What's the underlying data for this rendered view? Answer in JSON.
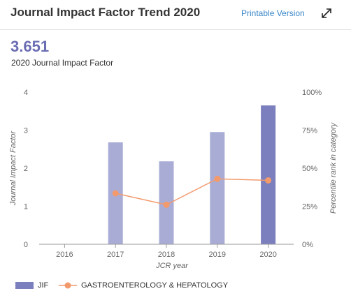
{
  "header": {
    "title": "Journal Impact Factor Trend 2020",
    "print_label": "Printable Version",
    "expand_icon": "expand-arrows-icon"
  },
  "metric": {
    "value": "3.651",
    "label": "2020 Journal Impact Factor"
  },
  "colors": {
    "bar": "#a9add6",
    "bar_highlight": "#7b7fbd",
    "line": "#f29a6c",
    "axis": "#999999",
    "text": "#666666"
  },
  "chart_data": {
    "type": "bar",
    "categories": [
      "2016",
      "2017",
      "2018",
      "2019",
      "2020"
    ],
    "xlabel": "JCR year",
    "ylabel": "Journal Impact Factor",
    "y2label": "Percentile rank in category",
    "ylim": [
      0,
      4
    ],
    "y2lim": [
      0,
      100
    ],
    "yticks": [
      "0",
      "1",
      "2",
      "3",
      "4"
    ],
    "y2ticks": [
      "0%",
      "25%",
      "50%",
      "75%",
      "100%"
    ],
    "grid": false,
    "legend_position": "bottom-left",
    "series": [
      {
        "name": "JIF",
        "kind": "bar",
        "values": [
          null,
          2.68,
          2.18,
          2.95,
          3.65
        ]
      },
      {
        "name": "GASTROENTEROLOGY & HEPATOLOGY",
        "kind": "line",
        "axis": "right",
        "values": [
          null,
          33.5,
          26.0,
          43.0,
          42.0
        ]
      }
    ]
  }
}
